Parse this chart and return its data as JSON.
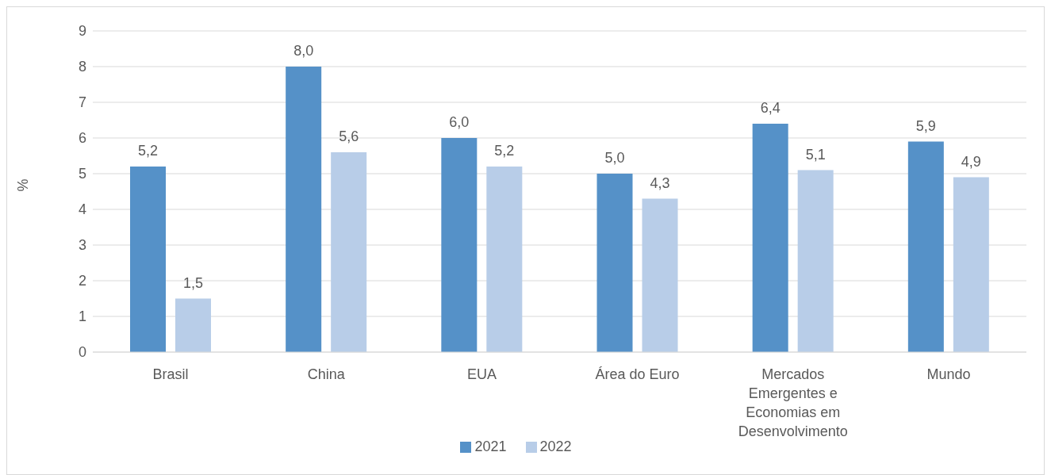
{
  "chart_data": {
    "type": "bar",
    "ylabel": "%",
    "categories": [
      "Brasil",
      "China",
      "EUA",
      "Área do Euro",
      "Mercados Emergentes e Economias em Desenvolvimento",
      "Mundo"
    ],
    "series": [
      {
        "name": "2021",
        "color": "#5591c8",
        "values": [
          5.2,
          8.0,
          6.0,
          5.0,
          6.4,
          5.9
        ],
        "value_labels": [
          "5,2",
          "8,0",
          "6,0",
          "5,0",
          "6,4",
          "5,9"
        ]
      },
      {
        "name": "2022",
        "color": "#b8cde8",
        "values": [
          1.5,
          5.6,
          5.2,
          4.3,
          5.1,
          4.9
        ],
        "value_labels": [
          "1,5",
          "5,6",
          "5,2",
          "4,3",
          "5,1",
          "4,9"
        ]
      }
    ],
    "ylim": [
      0,
      9
    ],
    "yticks": [
      0,
      1,
      2,
      3,
      4,
      5,
      6,
      7,
      8,
      9
    ],
    "grid": "y",
    "legend": "bottom"
  }
}
